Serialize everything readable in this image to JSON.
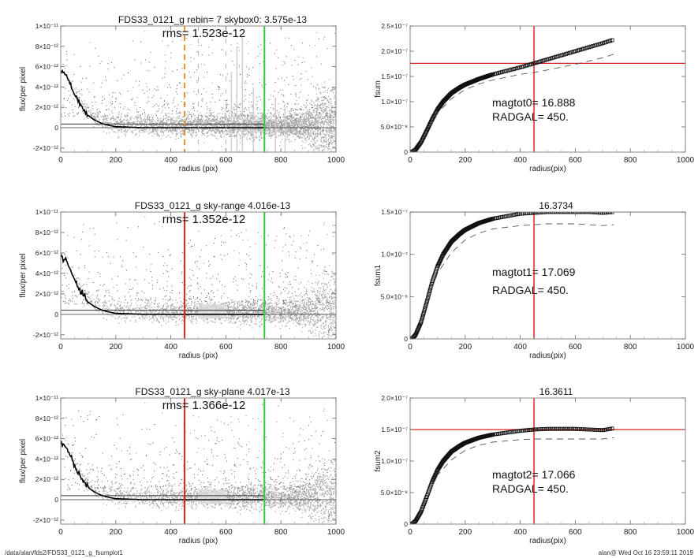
{
  "footer": {
    "path": "/data/alan/fds2/FDS33_0121_g_fsumplot1",
    "user_timestamp": "alan@  Wed Oct 16 23:59:11 2019"
  },
  "colors": {
    "scatter": "#a0a0a0",
    "scatter_dark": "#555555",
    "profile": "#000000",
    "radgal_line": "#dd2222",
    "radgal_dashed": "#e89030",
    "sky_line": "#33cc33",
    "frame": "#888888"
  },
  "chart_data": [
    {
      "id": "profile-skybox",
      "type": "scatter",
      "title": "FDS33_0121_g rebin= 7    skybox0:  3.575e-13",
      "annotation": "rms= 1.523e-12",
      "xlabel": "radius (pix)",
      "ylabel": "flux/per pixel",
      "xlim": [
        0,
        1000
      ],
      "ylim": [
        -2.4e-12,
        1e-11
      ],
      "xticks": [
        0,
        200,
        400,
        600,
        800,
        1000
      ],
      "xtick_labels": [
        "0",
        "200",
        "400",
        "600",
        "800",
        "1000"
      ],
      "yticks": [
        -2e-12,
        0,
        2e-12,
        4e-12,
        6e-12,
        8e-12,
        1e-11
      ],
      "ytick_labels": [
        "-2×10⁻¹²",
        "0",
        "2×10⁻¹²",
        "4×10⁻¹²",
        "6×10⁻¹²",
        "8×10⁻¹²",
        "1×10⁻¹¹"
      ],
      "sky_level": 3.575e-13,
      "sky_level_end_x": 740,
      "zero_line": 0,
      "radgal_x": 450,
      "radgal_style": "dashed-orange",
      "sky_radius_x": 740,
      "sky_boxes": true,
      "profile": {
        "x": [
          0,
          20,
          40,
          60,
          80,
          100,
          120,
          150,
          180,
          200,
          250,
          300,
          400,
          500,
          600,
          700,
          740
        ],
        "y": [
          5.6e-12,
          5.2e-12,
          4e-12,
          2.9e-12,
          1.9e-12,
          1.2e-12,
          8e-13,
          4e-13,
          2e-13,
          1e-13,
          5e-14,
          0,
          0,
          0,
          0,
          0,
          0
        ]
      }
    },
    {
      "id": "fsum-0",
      "type": "line",
      "title": "",
      "xlabel": "radius(pix)",
      "ylabel": "fsum",
      "xlim": [
        0,
        1000
      ],
      "ylim": [
        0,
        2.5e-07
      ],
      "xticks": [
        0,
        200,
        400,
        600,
        800,
        1000
      ],
      "xtick_labels": [
        "0",
        "200",
        "400",
        "600",
        "800",
        "1000"
      ],
      "yticks": [
        0,
        5e-08,
        1e-07,
        1.5e-07,
        2e-07,
        2.5e-07
      ],
      "ytick_labels": [
        "0",
        "5.0×10⁻⁸",
        "1.0×10⁻⁷",
        "1.5×10⁻⁷",
        "2.0×10⁻⁷",
        "2.5×10⁻⁷"
      ],
      "annotation_lines": [
        "magtot0=  16.888",
        "RADGAL=    450."
      ],
      "radgal_x": 450,
      "flux_at_radgal": 1.76e-07,
      "series": [
        {
          "name": "fsum",
          "style": "open-squares",
          "x": [
            0,
            10,
            20,
            40,
            60,
            80,
            100,
            120,
            150,
            180,
            200,
            250,
            300,
            350,
            400,
            450,
            500,
            550,
            600,
            650,
            700,
            740
          ],
          "y": [
            0,
            1e-09,
            5e-09,
            2e-08,
            4.2e-08,
            6.5e-08,
            8.5e-08,
            1e-07,
            1.17e-07,
            1.28e-07,
            1.34e-07,
            1.45e-07,
            1.54e-07,
            1.61e-07,
            1.68e-07,
            1.76e-07,
            1.84e-07,
            1.92e-07,
            2e-07,
            2.08e-07,
            2.16e-07,
            2.23e-07
          ]
        },
        {
          "name": "model",
          "style": "dashed",
          "x": [
            0,
            20,
            40,
            60,
            80,
            100,
            150,
            200,
            250,
            300,
            400,
            450,
            500,
            600,
            700,
            740
          ],
          "y": [
            0,
            5e-09,
            2e-08,
            4e-08,
            6e-08,
            7.8e-08,
            1.06e-07,
            1.24e-07,
            1.35e-07,
            1.43e-07,
            1.54e-07,
            1.58e-07,
            1.63e-07,
            1.74e-07,
            1.87e-07,
            1.94e-07
          ]
        }
      ]
    },
    {
      "id": "profile-sky-range",
      "type": "scatter",
      "title": "FDS33_0121_g sky-range  4.016e-13",
      "annotation": "rms= 1.352e-12",
      "xlabel": "radius (pix)",
      "ylabel": "flux/per pixel",
      "xlim": [
        0,
        1000
      ],
      "ylim": [
        -2.4e-12,
        1e-11
      ],
      "xticks": [
        0,
        200,
        400,
        600,
        800,
        1000
      ],
      "xtick_labels": [
        "0",
        "200",
        "400",
        "600",
        "800",
        "1000"
      ],
      "yticks": [
        -2e-12,
        0,
        2e-12,
        4e-12,
        6e-12,
        8e-12,
        1e-11
      ],
      "ytick_labels": [
        "-2×10⁻¹²",
        "0",
        "2×10⁻¹²",
        "4×10⁻¹²",
        "6×10⁻¹²",
        "8×10⁻¹²",
        "1×10⁻¹¹"
      ],
      "sky_level": 4.016e-13,
      "sky_level_end_x": 740,
      "zero_line": 0,
      "radgal_x": 450,
      "radgal_style": "solid-red",
      "sky_radius_x": 740,
      "sky_band": [
        500,
        600
      ],
      "profile": {
        "x": [
          0,
          20,
          40,
          60,
          80,
          100,
          120,
          150,
          180,
          200,
          250,
          300,
          400,
          500,
          600,
          700,
          740
        ],
        "y": [
          5.6e-12,
          5.2e-12,
          4e-12,
          2.9e-12,
          1.9e-12,
          1.2e-12,
          8e-13,
          4e-13,
          2e-13,
          1e-13,
          5e-14,
          0,
          0,
          0,
          0,
          0,
          0
        ]
      }
    },
    {
      "id": "fsum-1",
      "type": "line",
      "title": "16.3734",
      "xlabel": "radius(pix)",
      "ylabel": "fsum1",
      "xlim": [
        0,
        1000
      ],
      "ylim": [
        0,
        1.5e-07
      ],
      "xticks": [
        0,
        200,
        400,
        600,
        800,
        1000
      ],
      "xtick_labels": [
        "0",
        "200",
        "400",
        "600",
        "800",
        "1000"
      ],
      "yticks": [
        0,
        5e-08,
        1e-07,
        1.5e-07
      ],
      "ytick_labels": [
        "0",
        "5.0×10⁻⁸",
        "1.0×10⁻⁷",
        "1.5×10⁻⁷"
      ],
      "annotation_lines": [
        "magtot1=  17.069",
        "RADGAL=    450."
      ],
      "radgal_x": 450,
      "flux_at_radgal": 1.5e-07,
      "series": [
        {
          "name": "fsum1",
          "style": "open-squares",
          "x": [
            0,
            10,
            20,
            40,
            60,
            80,
            100,
            120,
            150,
            180,
            200,
            250,
            300,
            350,
            400,
            450,
            500,
            550,
            600,
            650,
            700,
            740
          ],
          "y": [
            0,
            1e-09,
            5e-09,
            2e-08,
            4.3e-08,
            6.7e-08,
            8.6e-08,
            1e-07,
            1.15e-07,
            1.24e-07,
            1.29e-07,
            1.37e-07,
            1.42e-07,
            1.45e-07,
            1.48e-07,
            1.49e-07,
            1.5e-07,
            1.5e-07,
            1.5e-07,
            1.5e-07,
            1.49e-07,
            1.5e-07
          ]
        },
        {
          "name": "model",
          "style": "dashed",
          "x": [
            0,
            20,
            40,
            60,
            80,
            100,
            150,
            200,
            250,
            300,
            400,
            450,
            500,
            600,
            700,
            740
          ],
          "y": [
            0,
            5e-09,
            2e-08,
            4e-08,
            6e-08,
            7.8e-08,
            1.02e-07,
            1.17e-07,
            1.25e-07,
            1.3e-07,
            1.34e-07,
            1.35e-07,
            1.36e-07,
            1.36e-07,
            1.34e-07,
            1.35e-07
          ]
        }
      ]
    },
    {
      "id": "profile-sky-plane",
      "type": "scatter",
      "title": "FDS33_0121_g sky-plane  4.017e-13",
      "annotation": "rms= 1.366e-12",
      "xlabel": "radius (pix)",
      "ylabel": "flux/per pixel",
      "xlim": [
        0,
        1000
      ],
      "ylim": [
        -2.4e-12,
        1e-11
      ],
      "xticks": [
        0,
        200,
        400,
        600,
        800,
        1000
      ],
      "xtick_labels": [
        "0",
        "200",
        "400",
        "600",
        "800",
        "1000"
      ],
      "yticks": [
        -2e-12,
        0,
        2e-12,
        4e-12,
        6e-12,
        8e-12,
        1e-11
      ],
      "ytick_labels": [
        "-2×10⁻¹²",
        "0",
        "2×10⁻¹²",
        "4×10⁻¹²",
        "6×10⁻¹²",
        "8×10⁻¹²",
        "1×10⁻¹¹"
      ],
      "sky_level": 4.017e-13,
      "sky_level_end_x": 740,
      "zero_line": 0,
      "radgal_x": 450,
      "radgal_style": "solid-red",
      "sky_radius_x": 740,
      "sky_band": [
        500,
        600
      ],
      "profile": {
        "x": [
          0,
          20,
          40,
          60,
          80,
          100,
          120,
          150,
          180,
          200,
          250,
          300,
          400,
          500,
          600,
          700,
          740
        ],
        "y": [
          5.6e-12,
          5.2e-12,
          4e-12,
          2.9e-12,
          1.9e-12,
          1.2e-12,
          8e-13,
          4e-13,
          2e-13,
          1e-13,
          5e-14,
          0,
          0,
          0,
          0,
          0,
          0
        ]
      }
    },
    {
      "id": "fsum-2",
      "type": "line",
      "title": "16.3611",
      "xlabel": "radius(pix)",
      "ylabel": "fsum2",
      "xlim": [
        0,
        1000
      ],
      "ylim": [
        0,
        2e-07
      ],
      "xticks": [
        0,
        200,
        400,
        600,
        800,
        1000
      ],
      "xtick_labels": [
        "0",
        "200",
        "400",
        "600",
        "800",
        "1000"
      ],
      "yticks": [
        0,
        5e-08,
        1e-07,
        1.5e-07,
        2e-07
      ],
      "ytick_labels": [
        "0",
        "5.0×10⁻⁸",
        "1.0×10⁻⁷",
        "1.5×10⁻⁷",
        "2.0×10⁻⁷"
      ],
      "annotation_lines": [
        "magtot2=  17.066",
        "RADGAL=    450."
      ],
      "radgal_x": 450,
      "flux_at_radgal": 1.5e-07,
      "series": [
        {
          "name": "fsum2",
          "style": "open-squares",
          "x": [
            0,
            10,
            20,
            40,
            60,
            80,
            100,
            120,
            150,
            180,
            200,
            250,
            300,
            350,
            400,
            450,
            500,
            550,
            600,
            650,
            700,
            740
          ],
          "y": [
            0,
            1e-09,
            5e-09,
            2e-08,
            4.3e-08,
            6.7e-08,
            8.6e-08,
            1e-07,
            1.15e-07,
            1.24e-07,
            1.29e-07,
            1.37e-07,
            1.42e-07,
            1.45e-07,
            1.48e-07,
            1.5e-07,
            1.51e-07,
            1.51e-07,
            1.51e-07,
            1.5e-07,
            1.49e-07,
            1.52e-07
          ]
        },
        {
          "name": "model",
          "style": "dashed",
          "x": [
            0,
            20,
            40,
            60,
            80,
            100,
            150,
            200,
            250,
            300,
            400,
            450,
            500,
            600,
            700,
            740
          ],
          "y": [
            0,
            5e-09,
            2e-08,
            4e-08,
            6e-08,
            7.8e-08,
            1.02e-07,
            1.17e-07,
            1.25e-07,
            1.3e-07,
            1.34e-07,
            1.35e-07,
            1.35e-07,
            1.35e-07,
            1.35e-07,
            1.37e-07
          ]
        }
      ]
    }
  ]
}
